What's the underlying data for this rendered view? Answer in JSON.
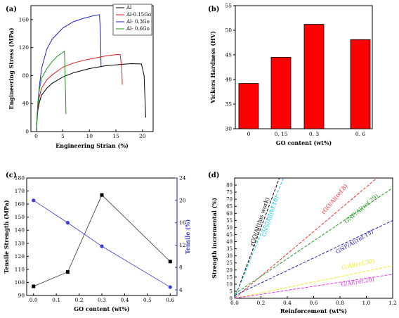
{
  "chart_data": [
    {
      "type": "line",
      "panel": "(a)",
      "xlabel": "Engineering Strian (%)",
      "ylabel": "Engineering Stress (MPa)",
      "xlim": [
        -1,
        22
      ],
      "ylim": [
        0,
        180
      ],
      "xticks": [
        0,
        5,
        10,
        15,
        20
      ],
      "yticks": [
        0,
        40,
        80,
        120,
        160
      ],
      "legend": "top-right",
      "series": [
        {
          "name": "Al",
          "color": "#000000",
          "x": [
            0,
            0.3,
            0.6,
            1,
            2,
            3,
            5,
            7,
            10,
            13,
            16,
            18,
            19.8,
            20.3,
            20.6
          ],
          "y": [
            0,
            30,
            42,
            52,
            62,
            69,
            78,
            84,
            90,
            94,
            96,
            97,
            96.5,
            80,
            20
          ]
        },
        {
          "name": "Al-0.15Go",
          "color": "#e41a1c",
          "x": [
            0,
            0.3,
            0.6,
            1,
            2,
            3,
            5,
            7,
            9,
            11,
            13,
            15,
            15.8,
            16.1,
            16.2
          ],
          "y": [
            0,
            35,
            50,
            62,
            74,
            81,
            92,
            98,
            102,
            105,
            108,
            110,
            110,
            90,
            67
          ]
        },
        {
          "name": "Al- 0.3Go",
          "color": "#2020cc",
          "x": [
            0,
            0.3,
            0.6,
            1,
            2,
            3,
            5,
            7,
            9,
            11,
            11.9,
            12.1,
            12.2
          ],
          "y": [
            0,
            40,
            65,
            90,
            118,
            132,
            148,
            157,
            162,
            166,
            167,
            140,
            92
          ]
        },
        {
          "name": "Al- 0.6Go",
          "color": "#1a9a1a",
          "x": [
            0,
            0.3,
            0.6,
            1,
            2,
            3,
            4,
            4.8,
            5.3,
            5.5,
            5.6
          ],
          "y": [
            0,
            38,
            60,
            76,
            90,
            100,
            108,
            112,
            115,
            60,
            25
          ]
        }
      ]
    },
    {
      "type": "bar",
      "panel": "(b)",
      "xlabel": "GO content  (wt%)",
      "ylabel": "Vickers Hardness (HV)",
      "categories": [
        "0",
        "0. 15",
        "0. 3",
        "0. 6"
      ],
      "values": [
        39.2,
        44.5,
        51.2,
        48.1
      ],
      "ylim": [
        30,
        55
      ],
      "yticks": [
        30,
        35,
        40,
        45,
        50,
        55
      ],
      "bar_color": "#ff0000"
    },
    {
      "type": "line",
      "panel": "(c)",
      "xlabel": "GO content (wt%)",
      "ylabel": "Tensile Strength (MPa)",
      "y2label": "Tensile (%)",
      "x": [
        0.0,
        0.15,
        0.3,
        0.6
      ],
      "xlim": [
        -0.03,
        0.63
      ],
      "xticks": [
        "0.0",
        "0.1",
        "0.2",
        "0.3",
        "0.4",
        "0.5",
        "0.6"
      ],
      "ylim": [
        90,
        180
      ],
      "yticks": [
        90,
        100,
        110,
        120,
        130,
        140,
        150,
        160,
        170,
        180
      ],
      "y2lim": [
        3,
        24
      ],
      "y2ticks": [
        4,
        8,
        12,
        16,
        20,
        24
      ],
      "series": [
        {
          "axis": "left",
          "color": "#333333",
          "marker": "square",
          "values": [
            97,
            108,
            167,
            116
          ]
        },
        {
          "axis": "right",
          "color": "#3b3bdb",
          "marker": "circle",
          "values": [
            20,
            16,
            11.8,
            4.5
          ]
        }
      ]
    },
    {
      "type": "line",
      "panel": "(d)",
      "xlabel": "Reinforcement (wt%)",
      "ylabel": "Strength incremental (%)",
      "xlim": [
        0,
        1.2
      ],
      "ylim": [
        0,
        85
      ],
      "xticks": [
        "0.0",
        "0.2",
        "0.4",
        "0.6",
        "0.8",
        "1.0",
        "1.2"
      ],
      "yticks": [
        0,
        5,
        10,
        15,
        20,
        25,
        30,
        35,
        40,
        45,
        50,
        55,
        60,
        65,
        70,
        75,
        80
      ],
      "series": [
        {
          "name": "rGO/Al(this work)",
          "color": "#000000",
          "x": [
            0,
            0.34
          ],
          "y": [
            0,
            85
          ]
        },
        {
          "name": "GNS/Al(ref.10)",
          "color": "#22ccdd",
          "x": [
            0,
            0.37
          ],
          "y": [
            0,
            85
          ]
        },
        {
          "name": "rGO/Al(ref.8)",
          "color": "#ff2a2a",
          "x": [
            0,
            1.08
          ],
          "y": [
            0,
            85
          ]
        },
        {
          "name": "GNF/Al(ref.29)",
          "color": "#229922",
          "x": [
            0,
            1.2
          ],
          "y": [
            3,
            78
          ]
        },
        {
          "name": "GNF/Al(ref.15)",
          "color": "#2222bb",
          "x": [
            0,
            1.2
          ],
          "y": [
            2,
            55
          ]
        },
        {
          "name": "G/Al(ref.30)",
          "color": "#eeee22",
          "x": [
            0,
            1.2
          ],
          "y": [
            0,
            23
          ]
        },
        {
          "name": "G/Al(ref.20)",
          "color": "#ee33ee",
          "x": [
            0,
            1.2
          ],
          "y": [
            0,
            17
          ]
        }
      ]
    }
  ]
}
